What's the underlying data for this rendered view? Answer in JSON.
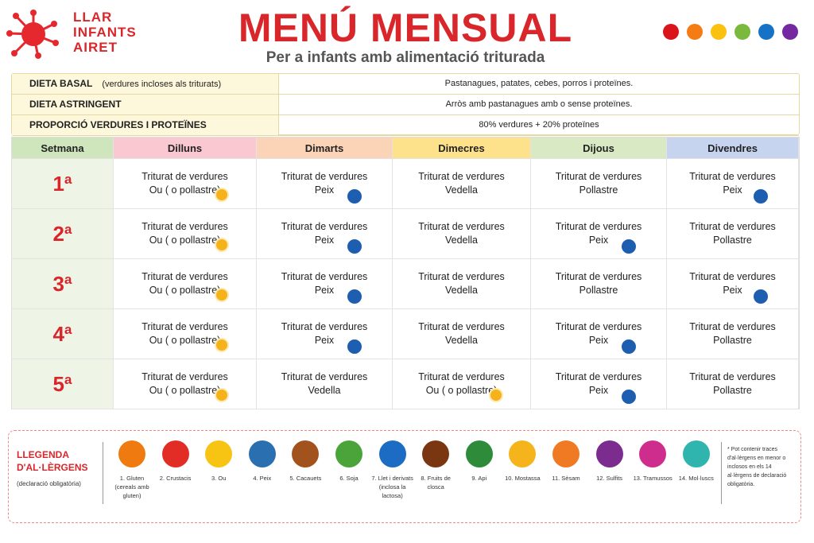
{
  "header": {
    "logo": [
      "LLAR",
      "INFANTS",
      "AIRET"
    ],
    "title": "MENÚ MENSUAL",
    "subtitle": "Per a infants amb alimentació triturada"
  },
  "diets": [
    {
      "label": "DIETA BASAL",
      "note": "(verdures incloses als triturats)",
      "text": "Pastanagues, patates, cebes, porros i proteïnes."
    },
    {
      "label": "DIETA ASTRINGENT",
      "text": "Arròs amb pastanagues amb o sense proteïnes."
    },
    {
      "label": "PROPORCIÓ VERDURES I PROTEÏNES",
      "text": "80% verdures + 20% proteïnes"
    }
  ],
  "menu": {
    "columns": [
      "Setmana",
      "Dilluns",
      "Dimarts",
      "Dimecres",
      "Dijous",
      "Divendres"
    ],
    "rows": [
      {
        "week": "1ª",
        "days": [
          "Triturat de verdures Ou ( o pollastre)",
          "Triturat de verdures Peix",
          "Triturat de verdures Vedella",
          "Triturat de verdures Pollastre",
          "Triturat de verdures Peix"
        ]
      },
      {
        "week": "2ª",
        "days": [
          "Triturat de verdures Ou ( o pollastre)",
          "Triturat de verdures Peix",
          "Triturat de verdures Vedella",
          "Triturat de verdures Peix",
          "Triturat de verdures Pollastre"
        ]
      },
      {
        "week": "3ª",
        "days": [
          "Triturat de verdures Ou ( o pollastre)",
          "Triturat de verdures Peix",
          "Triturat de verdures Vedella",
          "Triturat de verdures Pollastre",
          "Triturat de verdures Peix"
        ]
      },
      {
        "week": "4ª",
        "days": [
          "Triturat de verdures Ou ( o pollastre)",
          "Triturat de verdures Peix",
          "Triturat de verdures Vedella",
          "Triturat de verdures Peix",
          "Triturat de verdures Pollastre"
        ]
      },
      {
        "week": "5ª",
        "days": [
          "Triturat de verdures Ou ( o pollastre)",
          "Triturat de verdures Vedella",
          "Triturat de verdures Ou ( o pollastre)",
          "Triturat de verdures Peix",
          "Triturat de verdures Pollastre"
        ]
      }
    ]
  },
  "legend": {
    "title": "LLEGENDA D'AL·LÈRGENS",
    "note": "(declaració obligatòria)",
    "items": [
      "1. Gluten (cereals amb gluten)",
      "2. Crustacis",
      "3. Ou",
      "4. Peix",
      "5. Cacauets",
      "6. Soja",
      "7. Llet i derivats (inclosa la lactosa)",
      "8. Fruits de closca",
      "9. Api",
      "10. Mostassa",
      "11. Sèsam",
      "12. Sulfits",
      "13. Tramussos",
      "14. Mol·luscs"
    ],
    "footnote": "* Pot contenir traces d'al·lèrgens en menor o inclosos en els 14 al·lèrgens de declaració obligatòria."
  }
}
